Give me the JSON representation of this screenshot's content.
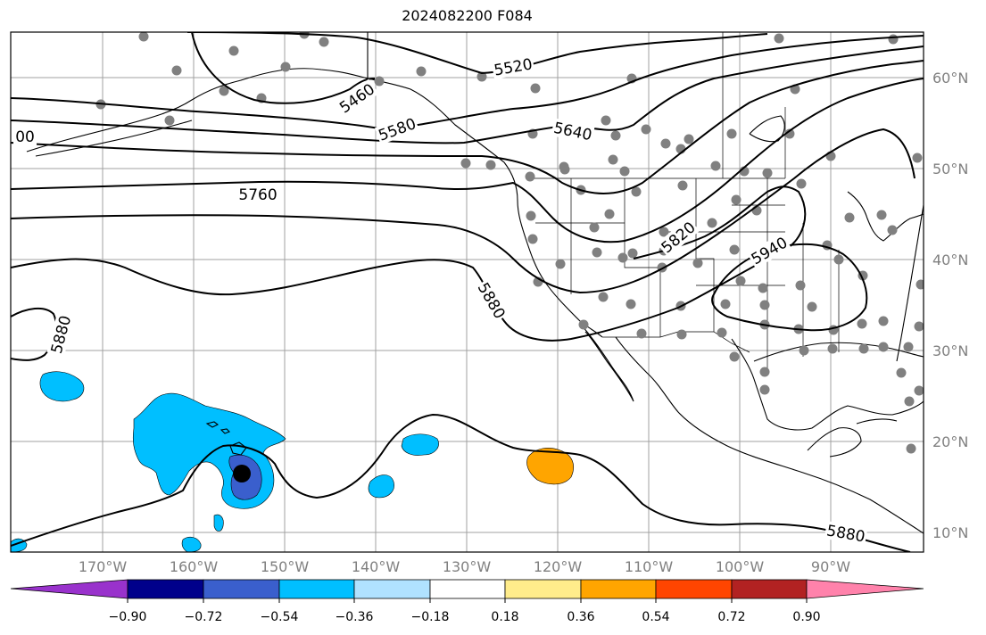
{
  "title": "2024082200 F084",
  "map": {
    "lon_labels": [
      "170°W",
      "160°W",
      "150°W",
      "140°W",
      "130°W",
      "120°W",
      "110°W",
      "100°W",
      "90°W"
    ],
    "lat_labels": [
      "60°N",
      "50°N",
      "40°N",
      "30°N",
      "20°N",
      "10°N"
    ],
    "contour_labels": [
      "5460",
      "5520",
      "5580",
      "5640",
      "5760",
      "5820",
      "5880",
      "5880",
      "5880",
      "5940",
      "00"
    ],
    "grid": true
  },
  "colorbar": {
    "tick_labels": [
      "−0.90",
      "−0.72",
      "−0.54",
      "−0.36",
      "−0.18",
      "0.18",
      "0.36",
      "0.54",
      "0.72",
      "0.90"
    ],
    "colors": [
      "#9932cc",
      "#00008b",
      "#3a5fcd",
      "#00bfff",
      "#b0e2ff",
      "#ffffff",
      "#ffec8b",
      "#ffa500",
      "#ff4500",
      "#b22222",
      "#ff82ab"
    ]
  }
}
